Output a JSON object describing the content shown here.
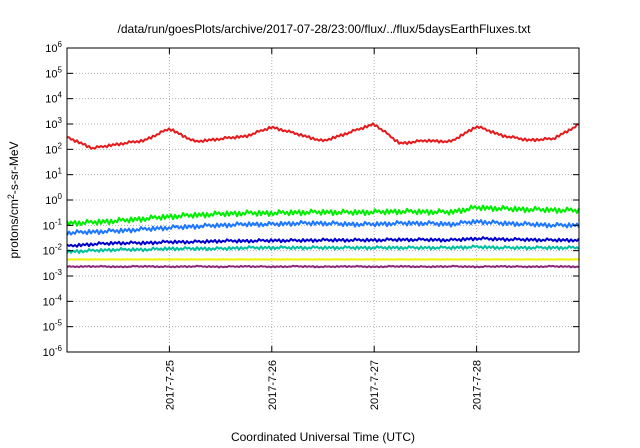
{
  "chart_data": {
    "type": "line",
    "title": "/data/run/goesPlots/archive/2017-07-28/23:00/flux/../flux/5daysEarthFluxes.txt",
    "xlabel": "Coordinated Universal Time (UTC)",
    "ylabel": {
      "base": "protons/cm",
      "sup": "2",
      "rest": "-s-sr-MeV"
    },
    "yscale": "log",
    "ylim": [
      1e-06,
      1000000.0
    ],
    "xlim": [
      "2017-07-24 00:00",
      "2017-07-29 00:00"
    ],
    "grid": true,
    "yticks": [
      {
        "exp": -6,
        "label_base": "10",
        "label_exp": "-6"
      },
      {
        "exp": -5,
        "label_base": "10",
        "label_exp": "-5"
      },
      {
        "exp": -4,
        "label_base": "10",
        "label_exp": "-4"
      },
      {
        "exp": -3,
        "label_base": "10",
        "label_exp": "-3"
      },
      {
        "exp": -2,
        "label_base": "10",
        "label_exp": "-2"
      },
      {
        "exp": -1,
        "label_base": "10",
        "label_exp": "-1"
      },
      {
        "exp": 0,
        "label_base": "10",
        "label_exp": "0"
      },
      {
        "exp": 1,
        "label_base": "10",
        "label_exp": "1"
      },
      {
        "exp": 2,
        "label_base": "10",
        "label_exp": "2"
      },
      {
        "exp": 3,
        "label_base": "10",
        "label_exp": "3"
      },
      {
        "exp": 4,
        "label_base": "10",
        "label_exp": "4"
      },
      {
        "exp": 5,
        "label_base": "10",
        "label_exp": "5"
      },
      {
        "exp": 6,
        "label_base": "10",
        "label_exp": "6"
      }
    ],
    "xticks": [
      "2017-7-25",
      "2017-7-26",
      "2017-7-27",
      "2017-7-28"
    ],
    "x": [
      "2017-07-24 00:00",
      "2017-07-24 06:00",
      "2017-07-24 12:00",
      "2017-07-24 18:00",
      "2017-07-25 00:00",
      "2017-07-25 06:00",
      "2017-07-25 12:00",
      "2017-07-25 18:00",
      "2017-07-26 00:00",
      "2017-07-26 06:00",
      "2017-07-26 12:00",
      "2017-07-26 18:00",
      "2017-07-27 00:00",
      "2017-07-27 06:00",
      "2017-07-27 12:00",
      "2017-07-27 18:00",
      "2017-07-28 00:00",
      "2017-07-28 06:00",
      "2017-07-28 12:00",
      "2017-07-28 18:00",
      "2017-07-29 00:00"
    ],
    "series": [
      {
        "color": "#e41a1c",
        "values": [
          300,
          110,
          160,
          220,
          650,
          200,
          260,
          330,
          750,
          400,
          210,
          450,
          1000,
          170,
          220,
          200,
          800,
          350,
          230,
          260,
          950
        ]
      },
      {
        "color": "#00ee00",
        "values": [
          0.12,
          0.13,
          0.15,
          0.18,
          0.22,
          0.25,
          0.28,
          0.3,
          0.3,
          0.32,
          0.33,
          0.32,
          0.33,
          0.35,
          0.34,
          0.33,
          0.5,
          0.45,
          0.42,
          0.4,
          0.38
        ]
      },
      {
        "color": "#1e78ff",
        "values": [
          0.05,
          0.055,
          0.06,
          0.07,
          0.08,
          0.09,
          0.1,
          0.11,
          0.11,
          0.12,
          0.12,
          0.11,
          0.11,
          0.12,
          0.12,
          0.11,
          0.14,
          0.12,
          0.11,
          0.1,
          0.1
        ]
      },
      {
        "color": "#0000cc",
        "values": [
          0.015,
          0.018,
          0.02,
          0.02,
          0.022,
          0.022,
          0.024,
          0.024,
          0.025,
          0.025,
          0.026,
          0.026,
          0.026,
          0.027,
          0.027,
          0.026,
          0.03,
          0.028,
          0.027,
          0.026,
          0.026
        ]
      },
      {
        "color": "#00c0a0",
        "values": [
          0.009,
          0.01,
          0.011,
          0.011,
          0.012,
          0.012,
          0.012,
          0.013,
          0.013,
          0.013,
          0.013,
          0.013,
          0.013,
          0.013,
          0.013,
          0.013,
          0.014,
          0.013,
          0.013,
          0.013,
          0.013
        ]
      },
      {
        "color": "#f0f000",
        "values": [
          0.0045,
          0.0045,
          0.0045,
          0.0045,
          0.0045,
          0.0045,
          0.0045,
          0.0045,
          0.0045,
          0.0045,
          0.0045,
          0.0045,
          0.0045,
          0.0045,
          0.0045,
          0.0045,
          0.0045,
          0.0045,
          0.0045,
          0.0045,
          0.0045
        ]
      },
      {
        "color": "#8b2a7a",
        "values": [
          0.0023,
          0.0024,
          0.0023,
          0.0024,
          0.0023,
          0.0024,
          0.0023,
          0.0024,
          0.0023,
          0.0024,
          0.0023,
          0.0024,
          0.0023,
          0.0024,
          0.0023,
          0.0024,
          0.0023,
          0.0024,
          0.0023,
          0.0024,
          0.0023
        ]
      }
    ]
  }
}
